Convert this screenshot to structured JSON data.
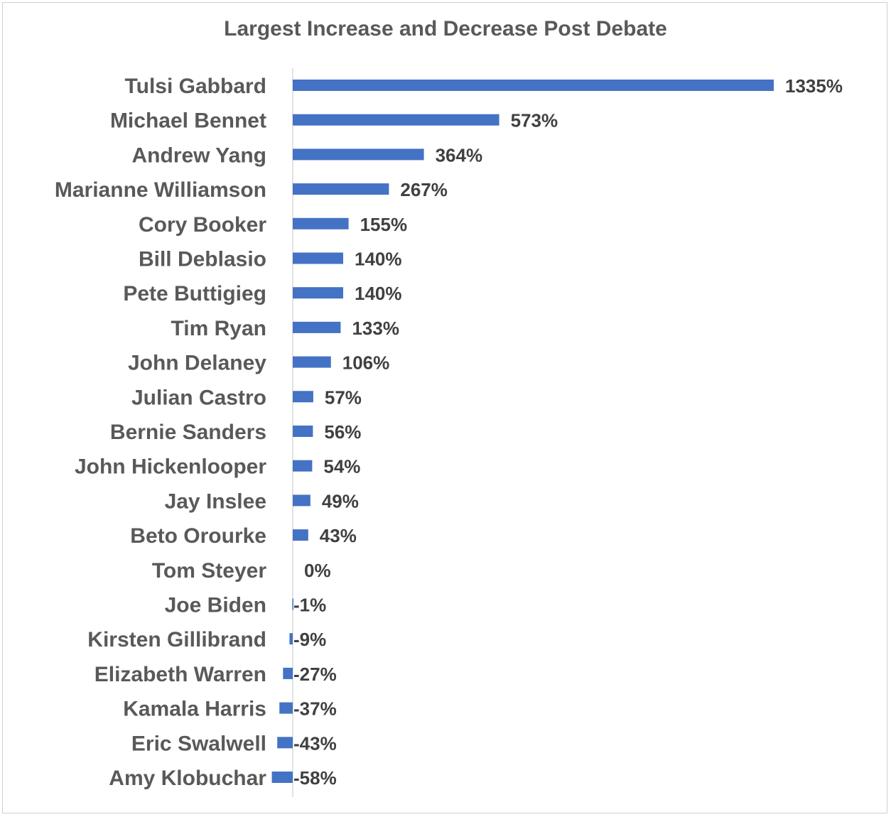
{
  "chart_data": {
    "type": "bar",
    "orientation": "horizontal",
    "title": "Largest Increase and Decrease Post Debate",
    "categories": [
      "Tulsi Gabbard",
      "Michael Bennet",
      "Andrew Yang",
      "Marianne Williamson",
      "Cory Booker",
      "Bill Deblasio",
      "Pete Buttigieg",
      "Tim Ryan",
      "John Delaney",
      "Julian Castro",
      "Bernie Sanders",
      "John Hickenlooper",
      "Jay Inslee",
      "Beto Orourke",
      "Tom Steyer",
      "Joe Biden",
      "Kirsten Gillibrand",
      "Elizabeth Warren",
      "Kamala Harris",
      "Eric Swalwell",
      "Amy Klobuchar"
    ],
    "values": [
      1335,
      573,
      364,
      267,
      155,
      140,
      140,
      133,
      106,
      57,
      56,
      54,
      49,
      43,
      0,
      -1,
      -9,
      -27,
      -37,
      -43,
      -58
    ],
    "data_labels": [
      "1335%",
      "573%",
      "364%",
      "267%",
      "155%",
      "140%",
      "140%",
      "133%",
      "106%",
      "57%",
      "56%",
      "54%",
      "49%",
      "43%",
      "0%",
      "-1%",
      "-9%",
      "-27%",
      "-37%",
      "-43%",
      "-58%"
    ],
    "xlim": [
      -58,
      1335
    ],
    "bar_color": "#4472C4",
    "axis_color": "#d9d9d9",
    "grid": false,
    "legend": false
  }
}
